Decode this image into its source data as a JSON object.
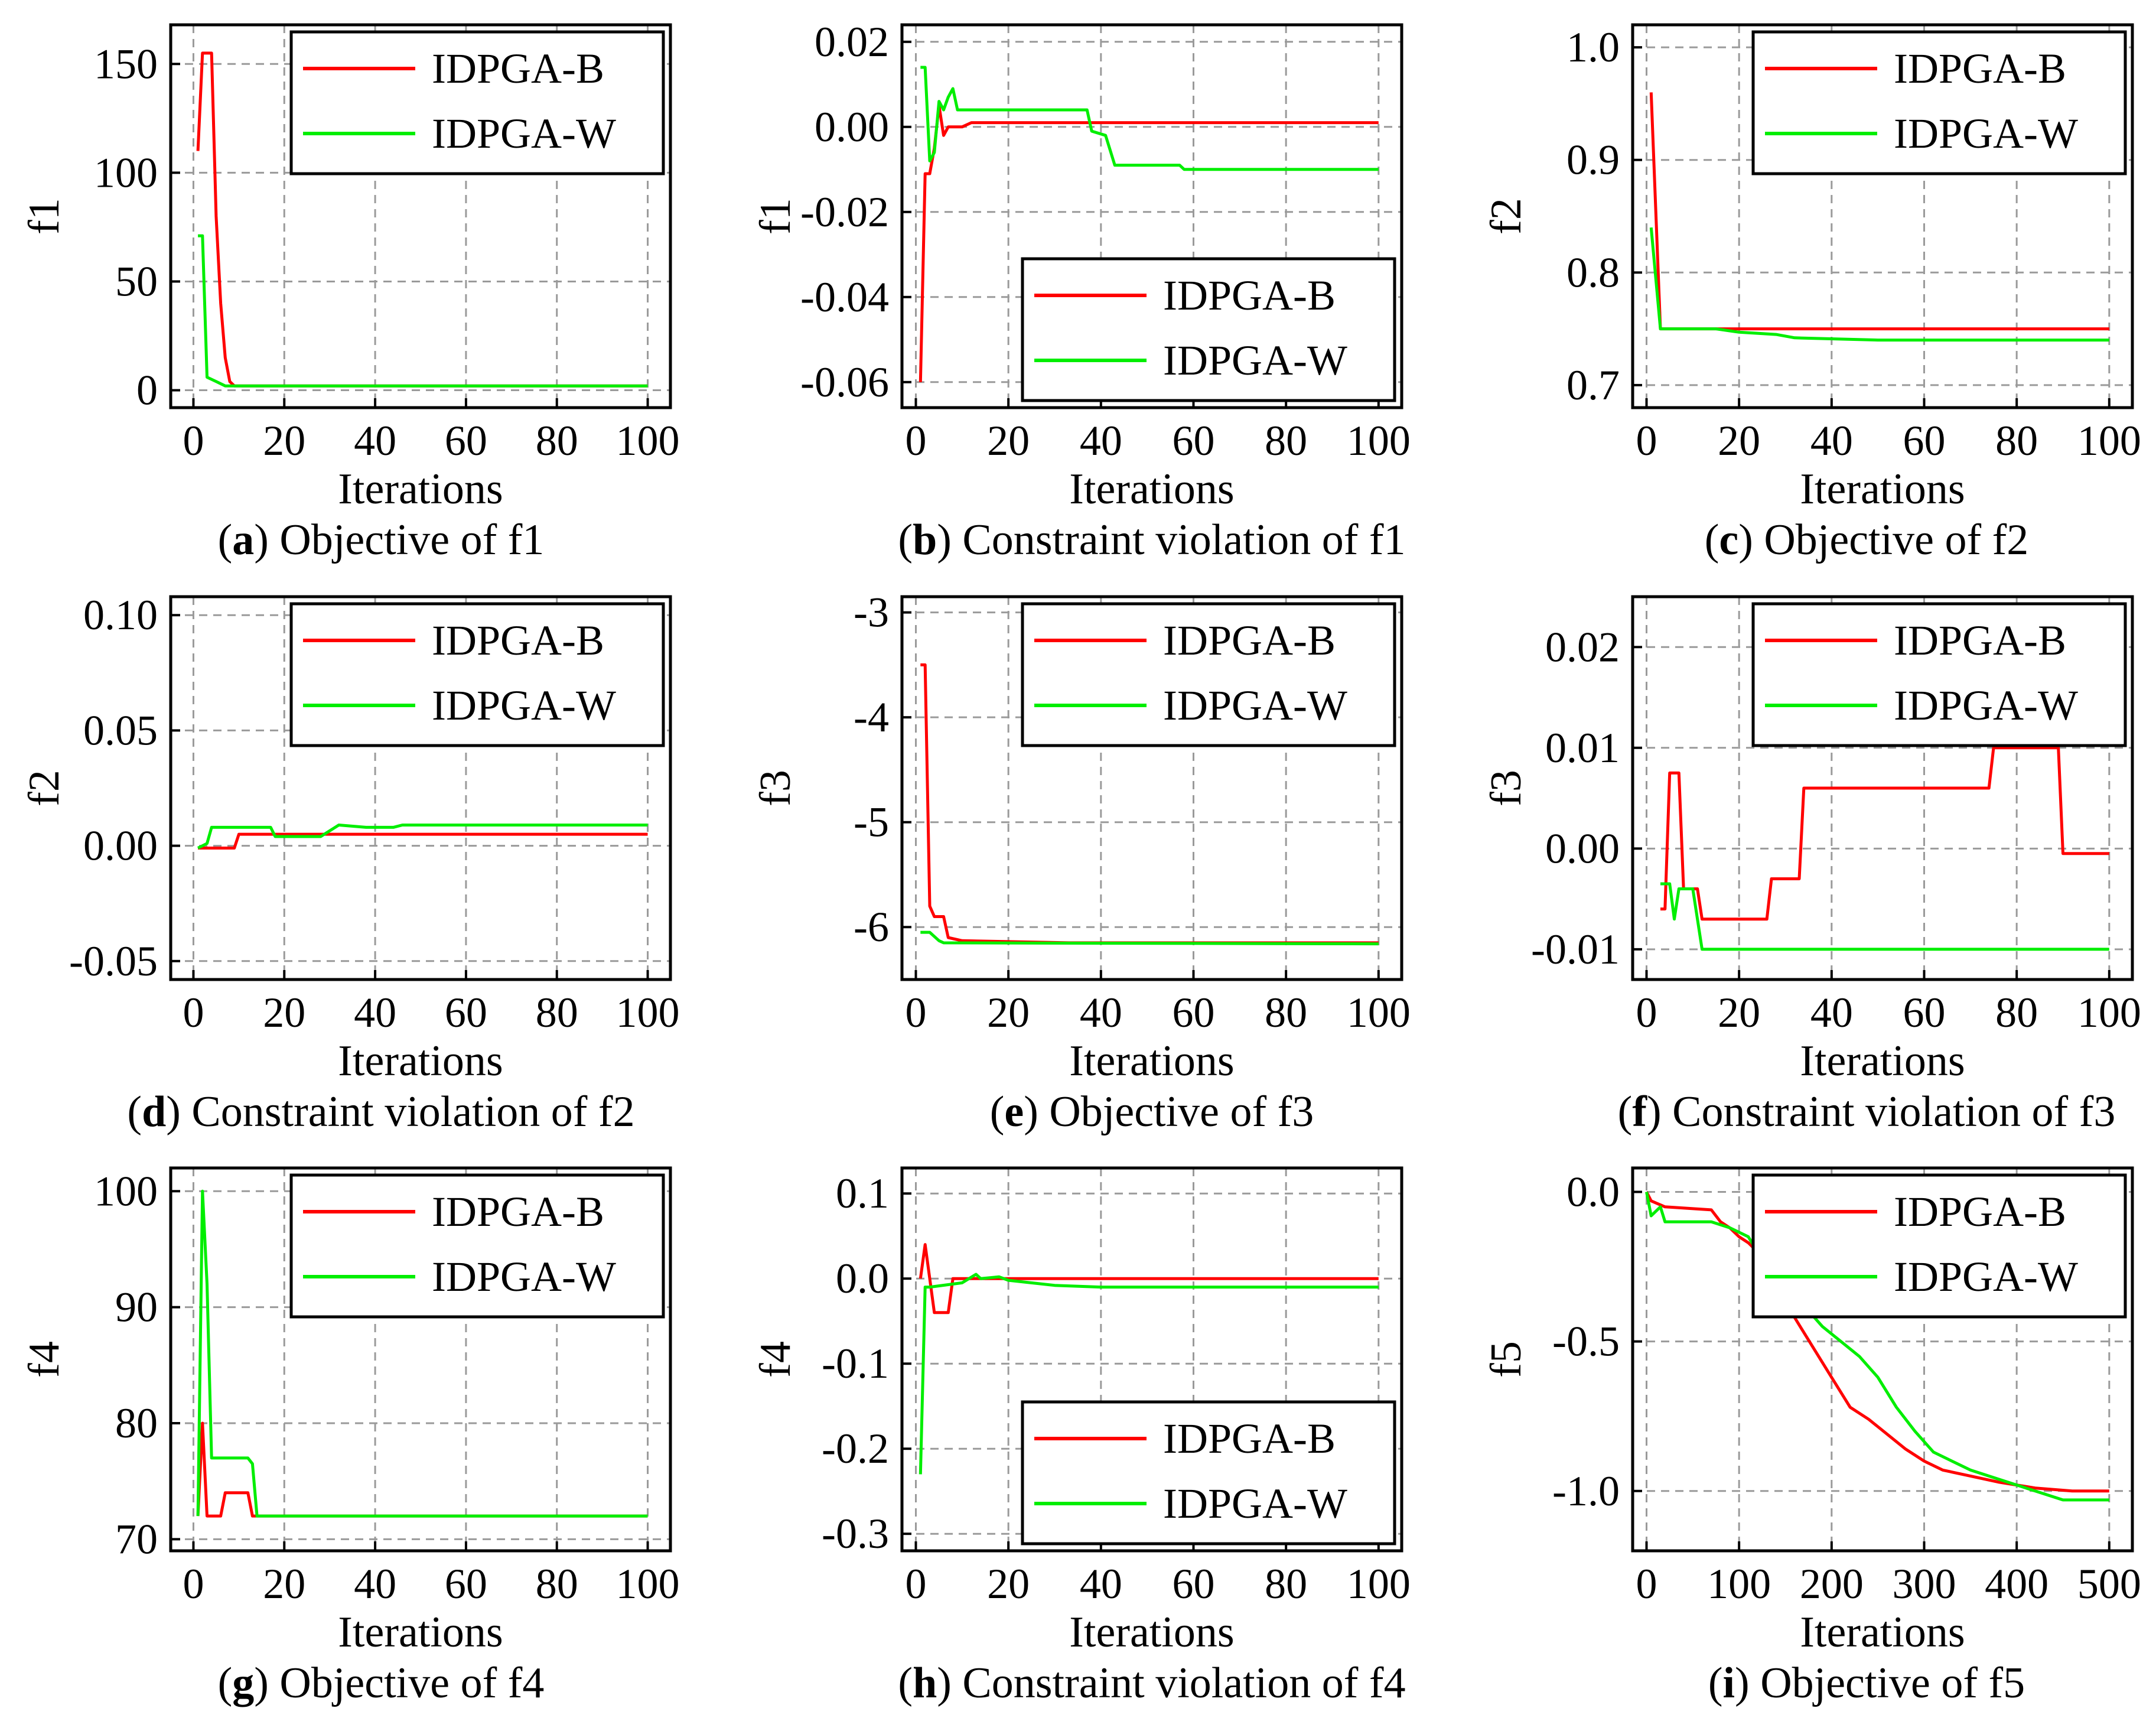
{
  "figure": {
    "colors": {
      "IDPGA-B": "#ff0000",
      "IDPGA-W": "#00ee00",
      "axis": "#000000",
      "grid": "#9a9a9a"
    }
  },
  "chart_data": [
    {
      "id": "a",
      "type": "line",
      "panel_letter": "a",
      "caption": " Objective of f1",
      "xlabel": "Iterations",
      "ylabel": "f1",
      "xlim": [
        -5,
        105
      ],
      "ylim": [
        -8,
        168
      ],
      "xticks": [
        0,
        20,
        40,
        60,
        80,
        100
      ],
      "yticks": [
        0,
        50,
        100,
        150
      ],
      "ytick_labels": [
        "0",
        "50",
        "100",
        "150"
      ],
      "grid": true,
      "legend_position": "top-right",
      "series": [
        {
          "name": "IDPGA-B",
          "points": [
            [
              1,
              110
            ],
            [
              2,
              155
            ],
            [
              4,
              155
            ],
            [
              5,
              80
            ],
            [
              6,
              40
            ],
            [
              7,
              15
            ],
            [
              8,
              4
            ],
            [
              9,
              2
            ],
            [
              100,
              2
            ]
          ]
        },
        {
          "name": "IDPGA-W",
          "points": [
            [
              1,
              71
            ],
            [
              2,
              71
            ],
            [
              3,
              6
            ],
            [
              5,
              4
            ],
            [
              7,
              2
            ],
            [
              100,
              2
            ]
          ]
        }
      ]
    },
    {
      "id": "b",
      "type": "line",
      "panel_letter": "b",
      "caption": " Constraint violation of f1",
      "xlabel": "Iterations",
      "ylabel": "f1",
      "xlim": [
        -3,
        105
      ],
      "ylim": [
        -0.066,
        0.024
      ],
      "xticks": [
        0,
        20,
        40,
        60,
        80,
        100
      ],
      "yticks": [
        0.02,
        0.0,
        -0.02,
        -0.04,
        -0.06
      ],
      "ytick_labels": [
        "0.02",
        "0.00",
        "-0.02",
        "-0.04",
        "-0.06"
      ],
      "grid": true,
      "legend_position": "bottom-right",
      "series": [
        {
          "name": "IDPGA-B",
          "points": [
            [
              1,
              -0.06
            ],
            [
              2,
              -0.011
            ],
            [
              3,
              -0.011
            ],
            [
              4,
              -0.005
            ],
            [
              5,
              0.005
            ],
            [
              6,
              -0.002
            ],
            [
              7,
              0.0
            ],
            [
              8,
              0.0
            ],
            [
              10,
              0.0
            ],
            [
              12,
              0.001
            ],
            [
              100,
              0.001
            ]
          ]
        },
        {
          "name": "IDPGA-W",
          "points": [
            [
              1,
              0.014
            ],
            [
              2,
              0.014
            ],
            [
              3,
              -0.008
            ],
            [
              4,
              -0.006
            ],
            [
              5,
              0.006
            ],
            [
              6,
              0.004
            ],
            [
              7,
              0.007
            ],
            [
              8,
              0.009
            ],
            [
              9,
              0.004
            ],
            [
              37,
              0.004
            ],
            [
              38,
              -0.001
            ],
            [
              41,
              -0.002
            ],
            [
              43,
              -0.009
            ],
            [
              57,
              -0.009
            ],
            [
              58,
              -0.01
            ],
            [
              100,
              -0.01
            ]
          ]
        }
      ]
    },
    {
      "id": "c",
      "type": "line",
      "panel_letter": "c",
      "caption": " Objective of f2",
      "xlabel": "Iterations",
      "ylabel": "f2",
      "xlim": [
        -3,
        105
      ],
      "ylim": [
        0.68,
        1.02
      ],
      "xticks": [
        0,
        20,
        40,
        60,
        80,
        100
      ],
      "yticks": [
        0.7,
        0.8,
        0.9,
        1.0
      ],
      "ytick_labels": [
        "0.7",
        "0.8",
        "0.9",
        "1.0"
      ],
      "grid": true,
      "legend_position": "top-right",
      "series": [
        {
          "name": "IDPGA-B",
          "points": [
            [
              1,
              0.96
            ],
            [
              3,
              0.75
            ],
            [
              100,
              0.75
            ]
          ]
        },
        {
          "name": "IDPGA-W",
          "points": [
            [
              1,
              0.84
            ],
            [
              3,
              0.75
            ],
            [
              15,
              0.75
            ],
            [
              20,
              0.747
            ],
            [
              28,
              0.745
            ],
            [
              32,
              0.742
            ],
            [
              50,
              0.74
            ],
            [
              100,
              0.74
            ]
          ]
        }
      ]
    },
    {
      "id": "d",
      "type": "line",
      "panel_letter": "d",
      "caption": " Constraint violation of f2",
      "xlabel": "Iterations",
      "ylabel": "f2",
      "xlim": [
        -5,
        105
      ],
      "ylim": [
        -0.058,
        0.108
      ],
      "xticks": [
        0,
        20,
        40,
        60,
        80,
        100
      ],
      "yticks": [
        0.1,
        0.05,
        0.0,
        -0.05
      ],
      "ytick_labels": [
        "0.10",
        "0.05",
        "0.00",
        "-0.05"
      ],
      "grid": true,
      "legend_position": "top-right",
      "series": [
        {
          "name": "IDPGA-B",
          "points": [
            [
              1,
              -0.001
            ],
            [
              9,
              -0.001
            ],
            [
              10,
              0.005
            ],
            [
              16,
              0.005
            ],
            [
              17,
              0.005
            ],
            [
              100,
              0.005
            ]
          ]
        },
        {
          "name": "IDPGA-W",
          "points": [
            [
              1,
              -0.001
            ],
            [
              3,
              0.001
            ],
            [
              4,
              0.008
            ],
            [
              17,
              0.008
            ],
            [
              18,
              0.004
            ],
            [
              28,
              0.004
            ],
            [
              32,
              0.009
            ],
            [
              38,
              0.008
            ],
            [
              44,
              0.008
            ],
            [
              46,
              0.009
            ],
            [
              100,
              0.009
            ]
          ]
        }
      ]
    },
    {
      "id": "e",
      "type": "line",
      "panel_letter": "e",
      "caption": " Objective of f3",
      "xlabel": "Iterations",
      "ylabel": "f3",
      "xlim": [
        -3,
        105
      ],
      "ylim": [
        -6.5,
        -2.85
      ],
      "xticks": [
        0,
        20,
        40,
        60,
        80,
        100
      ],
      "yticks": [
        -3,
        -4,
        -5,
        -6
      ],
      "ytick_labels": [
        "-3",
        "-4",
        "-5",
        "-6"
      ],
      "grid": true,
      "legend_position": "top-right",
      "series": [
        {
          "name": "IDPGA-B",
          "points": [
            [
              1,
              -3.5
            ],
            [
              2,
              -3.5
            ],
            [
              3,
              -5.8
            ],
            [
              4,
              -5.9
            ],
            [
              6,
              -5.9
            ],
            [
              7,
              -6.1
            ],
            [
              10,
              -6.13
            ],
            [
              33,
              -6.15
            ],
            [
              100,
              -6.15
            ]
          ]
        },
        {
          "name": "IDPGA-W",
          "points": [
            [
              1,
              -6.05
            ],
            [
              3,
              -6.05
            ],
            [
              5,
              -6.13
            ],
            [
              6,
              -6.15
            ],
            [
              100,
              -6.16
            ]
          ]
        }
      ]
    },
    {
      "id": "f",
      "type": "line",
      "panel_letter": "f",
      "caption": " Constraint violation of f3",
      "xlabel": "Iterations",
      "ylabel": "f3",
      "xlim": [
        -3,
        105
      ],
      "ylim": [
        -0.013,
        0.025
      ],
      "xticks": [
        0,
        20,
        40,
        60,
        80,
        100
      ],
      "yticks": [
        0.02,
        0.01,
        0.0,
        -0.01
      ],
      "ytick_labels": [
        "0.02",
        "0.01",
        "0.00",
        "-0.01"
      ],
      "grid": true,
      "legend_position": "top-right",
      "series": [
        {
          "name": "IDPGA-B",
          "points": [
            [
              3,
              -0.006
            ],
            [
              4,
              -0.006
            ],
            [
              5,
              0.0075
            ],
            [
              7,
              0.0075
            ],
            [
              8,
              -0.004
            ],
            [
              11,
              -0.004
            ],
            [
              12,
              -0.007
            ],
            [
              26,
              -0.007
            ],
            [
              27,
              -0.003
            ],
            [
              33,
              -0.003
            ],
            [
              34,
              0.006
            ],
            [
              74,
              0.006
            ],
            [
              75,
              0.01
            ],
            [
              89,
              0.01
            ],
            [
              90,
              -0.0005
            ],
            [
              100,
              -0.0005
            ]
          ]
        },
        {
          "name": "IDPGA-W",
          "points": [
            [
              3,
              -0.0035
            ],
            [
              5,
              -0.0035
            ],
            [
              6,
              -0.007
            ],
            [
              7,
              -0.004
            ],
            [
              10,
              -0.004
            ],
            [
              12,
              -0.01
            ],
            [
              100,
              -0.01
            ]
          ]
        }
      ]
    },
    {
      "id": "g",
      "type": "line",
      "panel_letter": "g",
      "caption": " Objective of f4",
      "xlabel": "Iterations",
      "ylabel": "f4",
      "xlim": [
        -5,
        105
      ],
      "ylim": [
        69,
        102
      ],
      "xticks": [
        0,
        20,
        40,
        60,
        80,
        100
      ],
      "yticks": [
        70,
        80,
        90,
        100
      ],
      "ytick_labels": [
        "70",
        "80",
        "90",
        "100"
      ],
      "grid": true,
      "legend_position": "top-right",
      "series": [
        {
          "name": "IDPGA-B",
          "points": [
            [
              1,
              72
            ],
            [
              2,
              80
            ],
            [
              3,
              72
            ],
            [
              6,
              72
            ],
            [
              7,
              74
            ],
            [
              12,
              74
            ],
            [
              13,
              72
            ],
            [
              100,
              72
            ]
          ]
        },
        {
          "name": "IDPGA-W",
          "points": [
            [
              1,
              72
            ],
            [
              2,
              100
            ],
            [
              3,
              92
            ],
            [
              4,
              77
            ],
            [
              12,
              77
            ],
            [
              13,
              76.5
            ],
            [
              14,
              72
            ],
            [
              100,
              72
            ]
          ]
        }
      ]
    },
    {
      "id": "h",
      "type": "line",
      "panel_letter": "h",
      "caption": " Constraint violation of f4",
      "xlabel": "Iterations",
      "ylabel": "f4",
      "xlim": [
        -3,
        105
      ],
      "ylim": [
        -0.32,
        0.13
      ],
      "xticks": [
        0,
        20,
        40,
        60,
        80,
        100
      ],
      "yticks": [
        0.1,
        0.0,
        -0.1,
        -0.2,
        -0.3
      ],
      "ytick_labels": [
        "0.1",
        "0.0",
        "-0.1",
        "-0.2",
        "-0.3"
      ],
      "grid": true,
      "legend_position": "bottom-right",
      "series": [
        {
          "name": "IDPGA-B",
          "points": [
            [
              1,
              0.0
            ],
            [
              2,
              0.04
            ],
            [
              3,
              0.0
            ],
            [
              4,
              -0.04
            ],
            [
              7,
              -0.04
            ],
            [
              8,
              0.0
            ],
            [
              100,
              0.0
            ]
          ]
        },
        {
          "name": "IDPGA-W",
          "points": [
            [
              1,
              -0.23
            ],
            [
              2,
              -0.01
            ],
            [
              3,
              -0.01
            ],
            [
              10,
              -0.005
            ],
            [
              13,
              0.005
            ],
            [
              14,
              0.0
            ],
            [
              18,
              0.002
            ],
            [
              20,
              -0.002
            ],
            [
              30,
              -0.008
            ],
            [
              40,
              -0.01
            ],
            [
              100,
              -0.01
            ]
          ]
        }
      ]
    },
    {
      "id": "i",
      "type": "line",
      "panel_letter": "i",
      "caption": " Objective of f5",
      "xlabel": "Iterations",
      "ylabel": "f5",
      "xlim": [
        -15,
        525
      ],
      "ylim": [
        -1.2,
        0.08
      ],
      "xticks": [
        0,
        100,
        200,
        300,
        400,
        500
      ],
      "yticks": [
        0.0,
        -0.5,
        -1.0
      ],
      "ytick_labels": [
        "0.0",
        "-0.5",
        "-1.0"
      ],
      "grid": true,
      "legend_position": "top-right",
      "series": [
        {
          "name": "IDPGA-B",
          "points": [
            [
              0,
              0.0
            ],
            [
              5,
              -0.03
            ],
            [
              20,
              -0.05
            ],
            [
              70,
              -0.06
            ],
            [
              80,
              -0.1
            ],
            [
              90,
              -0.12
            ],
            [
              100,
              -0.15
            ],
            [
              110,
              -0.17
            ],
            [
              120,
              -0.2
            ],
            [
              140,
              -0.3
            ],
            [
              160,
              -0.42
            ],
            [
              180,
              -0.52
            ],
            [
              200,
              -0.62
            ],
            [
              210,
              -0.67
            ],
            [
              220,
              -0.72
            ],
            [
              240,
              -0.76
            ],
            [
              260,
              -0.81
            ],
            [
              280,
              -0.86
            ],
            [
              300,
              -0.9
            ],
            [
              320,
              -0.93
            ],
            [
              350,
              -0.95
            ],
            [
              380,
              -0.97
            ],
            [
              420,
              -0.99
            ],
            [
              460,
              -1.0
            ],
            [
              500,
              -1.0
            ]
          ]
        },
        {
          "name": "IDPGA-W",
          "points": [
            [
              0,
              0.0
            ],
            [
              5,
              -0.08
            ],
            [
              15,
              -0.05
            ],
            [
              20,
              -0.1
            ],
            [
              70,
              -0.1
            ],
            [
              90,
              -0.12
            ],
            [
              110,
              -0.15
            ],
            [
              120,
              -0.2
            ],
            [
              130,
              -0.25
            ],
            [
              150,
              -0.3
            ],
            [
              170,
              -0.38
            ],
            [
              190,
              -0.45
            ],
            [
              210,
              -0.5
            ],
            [
              230,
              -0.55
            ],
            [
              250,
              -0.62
            ],
            [
              270,
              -0.72
            ],
            [
              290,
              -0.8
            ],
            [
              310,
              -0.87
            ],
            [
              330,
              -0.9
            ],
            [
              350,
              -0.93
            ],
            [
              380,
              -0.96
            ],
            [
              420,
              -1.0
            ],
            [
              450,
              -1.03
            ],
            [
              500,
              -1.03
            ]
          ]
        }
      ]
    }
  ]
}
